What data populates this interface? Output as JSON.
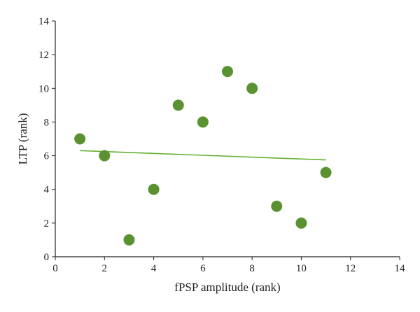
{
  "chart_data": {
    "type": "scatter",
    "xlabel": "fPSP amplitude (rank)",
    "ylabel": "LTP (rank)",
    "xlim": [
      0,
      14
    ],
    "ylim": [
      0,
      14
    ],
    "xticks": [
      "0",
      "2",
      "4",
      "6",
      "8",
      "10",
      "12",
      "14"
    ],
    "yticks": [
      "0",
      "2",
      "4",
      "6",
      "8",
      "10",
      "12",
      "14"
    ],
    "grid": false,
    "legend": "none",
    "marker_color": "#5a9232",
    "trendline_color": "#66b032",
    "series": [
      {
        "points": [
          {
            "x": 1,
            "y": 7
          },
          {
            "x": 2,
            "y": 6
          },
          {
            "x": 3,
            "y": 1
          },
          {
            "x": 4,
            "y": 4
          },
          {
            "x": 5,
            "y": 9
          },
          {
            "x": 6,
            "y": 8
          },
          {
            "x": 7,
            "y": 11
          },
          {
            "x": 8,
            "y": 10
          },
          {
            "x": 9,
            "y": 3
          },
          {
            "x": 10,
            "y": 2
          },
          {
            "x": 11,
            "y": 5
          }
        ],
        "trendline": {
          "type": "linear",
          "x_range": [
            1,
            11
          ],
          "y_start": 6.3,
          "y_end": 5.75
        }
      }
    ]
  }
}
